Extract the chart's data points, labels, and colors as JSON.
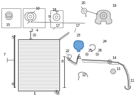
{
  "bg_color": "#ffffff",
  "fig_bg": "#ffffff",
  "highlight_color": "#5b9bd5",
  "line_color": "#666666",
  "label_color": "#111111",
  "lw_main": 0.6,
  "lw_thin": 0.4,
  "lw_hose": 1.0,
  "fs": 3.8
}
